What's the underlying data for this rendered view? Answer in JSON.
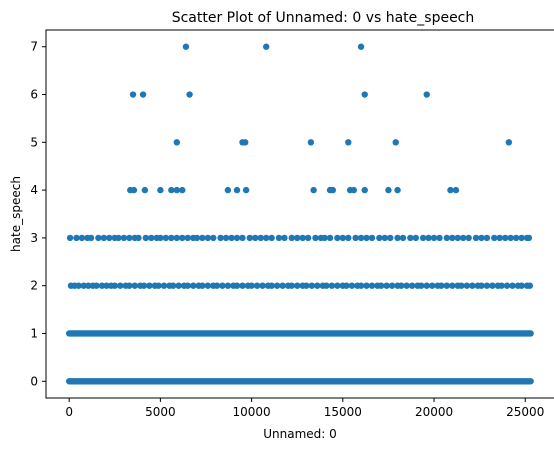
{
  "chart_data": {
    "type": "scatter",
    "title": "Scatter Plot of Unnamed: 0 vs hate_speech",
    "xlabel": "Unnamed: 0",
    "ylabel": "hate_speech",
    "xlim": [
      -1270,
      26630
    ],
    "ylim": [
      -0.35,
      7.35
    ],
    "xticks": [
      0,
      5000,
      10000,
      15000,
      20000,
      25000
    ],
    "xtick_labels": [
      "0",
      "5000",
      "10000",
      "15000",
      "20000",
      "25000"
    ],
    "yticks": [
      0,
      1,
      2,
      3,
      4,
      5,
      6,
      7
    ],
    "ytick_labels": [
      "0",
      "1",
      "2",
      "3",
      "4",
      "5",
      "6",
      "7"
    ],
    "grid": false,
    "marker_color": "#1f77b4",
    "series": [
      {
        "bands": [
          {
            "y": 0,
            "x_start": 0,
            "x_end": 25296
          },
          {
            "y": 1,
            "x_start": 0,
            "x_end": 25296
          }
        ],
        "y2_x": [
          100,
          300,
          520,
          800,
          1050,
          1300,
          1500,
          1800,
          2050,
          2300,
          2500,
          2800,
          3100,
          3300,
          3600,
          3900,
          4100,
          4400,
          4700,
          4900,
          5200,
          5500,
          5700,
          6000,
          6300,
          6500,
          6800,
          7100,
          7300,
          7600,
          7900,
          8100,
          8400,
          8700,
          9000,
          9200,
          9500,
          9800,
          10000,
          10300,
          10600,
          10900,
          11100,
          11400,
          11700,
          12000,
          12200,
          12500,
          12800,
          13000,
          13300,
          13600,
          13900,
          14100,
          14400,
          14700,
          15000,
          15200,
          15500,
          15800,
          16000,
          16300,
          16600,
          16900,
          17100,
          17400,
          17700,
          18000,
          18200,
          18500,
          18800,
          19100,
          19300,
          19600,
          19900,
          20200,
          20400,
          20700,
          21000,
          21300,
          21500,
          21800,
          22100,
          22400,
          22600,
          22900,
          23200,
          23500,
          23700,
          24000,
          24300,
          24600,
          24800,
          25100,
          25250
        ],
        "y3_x": [
          50,
          400,
          700,
          1000,
          1200,
          1600,
          1900,
          2200,
          2500,
          2700,
          3000,
          3300,
          3600,
          3800,
          4200,
          4500,
          4800,
          5000,
          5300,
          5600,
          5900,
          6200,
          6500,
          6800,
          7000,
          7300,
          7600,
          7900,
          8300,
          8600,
          8900,
          9200,
          9500,
          9900,
          10200,
          10500,
          10800,
          11100,
          11500,
          11800,
          12200,
          12500,
          12800,
          13100,
          13500,
          13800,
          14000,
          14300,
          14700,
          15000,
          15300,
          15700,
          16000,
          16300,
          16600,
          17000,
          17300,
          17600,
          18000,
          18300,
          18700,
          19000,
          19400,
          19700,
          20000,
          20300,
          20700,
          21000,
          21300,
          21600,
          21900,
          22300,
          22600,
          22900,
          23300,
          23600,
          23900,
          24200,
          24500,
          24800,
          25100,
          25200
        ],
        "points": [
          {
            "x": 3350,
            "y": 4
          },
          {
            "x": 3550,
            "y": 4
          },
          {
            "x": 4150,
            "y": 4
          },
          {
            "x": 5000,
            "y": 4
          },
          {
            "x": 5600,
            "y": 4
          },
          {
            "x": 5900,
            "y": 4
          },
          {
            "x": 6200,
            "y": 4
          },
          {
            "x": 8700,
            "y": 4
          },
          {
            "x": 9200,
            "y": 4
          },
          {
            "x": 9700,
            "y": 4
          },
          {
            "x": 13400,
            "y": 4
          },
          {
            "x": 14300,
            "y": 4
          },
          {
            "x": 14450,
            "y": 4
          },
          {
            "x": 15400,
            "y": 4
          },
          {
            "x": 15600,
            "y": 4
          },
          {
            "x": 16200,
            "y": 4
          },
          {
            "x": 17500,
            "y": 4
          },
          {
            "x": 18000,
            "y": 4
          },
          {
            "x": 20900,
            "y": 4
          },
          {
            "x": 21200,
            "y": 4
          },
          {
            "x": 5900,
            "y": 5
          },
          {
            "x": 9500,
            "y": 5
          },
          {
            "x": 9650,
            "y": 5
          },
          {
            "x": 13250,
            "y": 5
          },
          {
            "x": 15300,
            "y": 5
          },
          {
            "x": 17900,
            "y": 5
          },
          {
            "x": 24100,
            "y": 5
          },
          {
            "x": 3500,
            "y": 6
          },
          {
            "x": 4050,
            "y": 6
          },
          {
            "x": 6600,
            "y": 6
          },
          {
            "x": 16200,
            "y": 6
          },
          {
            "x": 19600,
            "y": 6
          },
          {
            "x": 6400,
            "y": 7
          },
          {
            "x": 10800,
            "y": 7
          },
          {
            "x": 16000,
            "y": 7
          }
        ]
      }
    ]
  }
}
